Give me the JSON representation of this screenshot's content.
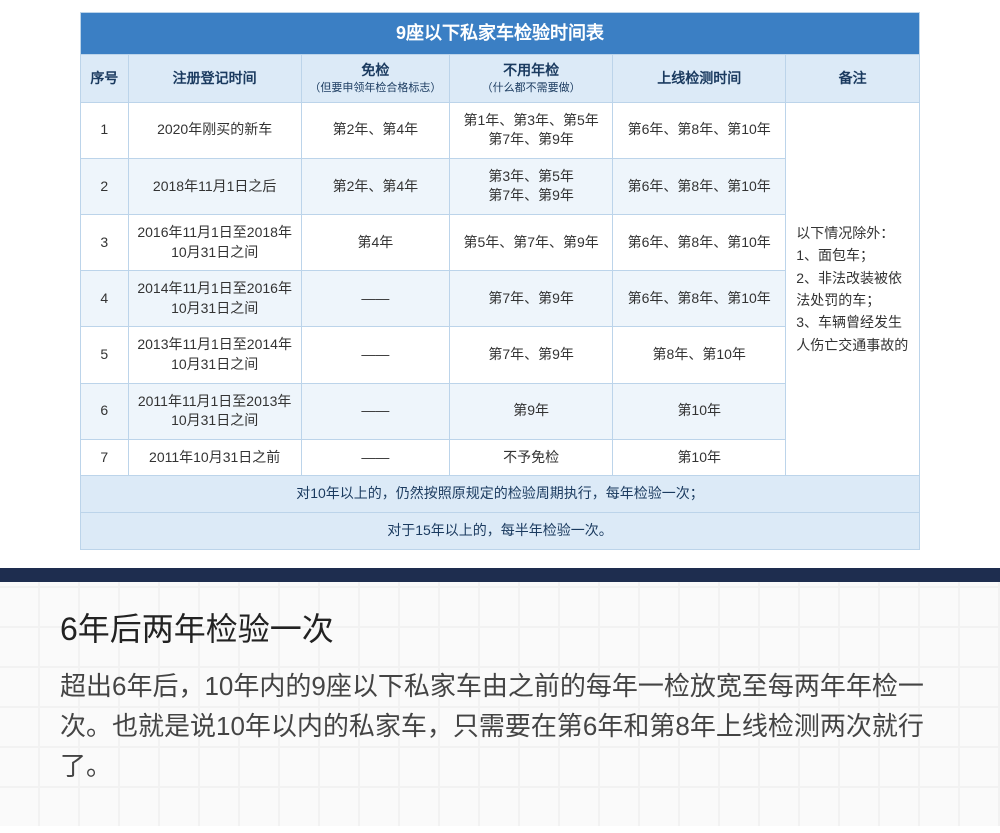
{
  "table": {
    "title": "9座以下私家车检验时间表",
    "headers": {
      "seq": "序号",
      "reg": "注册登记时间",
      "exempt": "免检",
      "exempt_sub": "（但要申领年检合格标志）",
      "nocheck": "不用年检",
      "nocheck_sub": "（什么都不需要做）",
      "online": "上线检测时间",
      "remark": "备注"
    },
    "rows": [
      {
        "seq": "1",
        "reg": "2020年刚买的新车",
        "exempt": "第2年、第4年",
        "nocheck": "第1年、第3年、第5年\n第7年、第9年",
        "online": "第6年、第8年、第10年"
      },
      {
        "seq": "2",
        "reg": "2018年11月1日之后",
        "exempt": "第2年、第4年",
        "nocheck": "第3年、第5年\n第7年、第9年",
        "online": "第6年、第8年、第10年"
      },
      {
        "seq": "3",
        "reg": "2016年11月1日至2018年10月31日之间",
        "exempt": "第4年",
        "nocheck": "第5年、第7年、第9年",
        "online": "第6年、第8年、第10年"
      },
      {
        "seq": "4",
        "reg": "2014年11月1日至2016年10月31日之间",
        "exempt": "——",
        "nocheck": "第7年、第9年",
        "online": "第6年、第8年、第10年"
      },
      {
        "seq": "5",
        "reg": "2013年11月1日至2014年10月31日之间",
        "exempt": "——",
        "nocheck": "第7年、第9年",
        "online": "第8年、第10年"
      },
      {
        "seq": "6",
        "reg": "2011年11月1日至2013年10月31日之间",
        "exempt": "——",
        "nocheck": "第9年",
        "online": "第10年"
      },
      {
        "seq": "7",
        "reg": "2011年10月31日之前",
        "exempt": "——",
        "nocheck": "不予免检",
        "online": "第10年"
      }
    ],
    "remark_text": "以下情况除外：\n1、面包车；\n2、非法改装被依法处罚的车；\n3、车辆曾经发生人伤亡交通事故的",
    "footer1": "对10年以上的，仍然按照原规定的检验周期执行，每年检验一次；",
    "footer2": "对于15年以上的，每半年检验一次。"
  },
  "article": {
    "heading": "6年后两年检验一次",
    "body": "超出6年后，10年内的9座以下私家车由之前的每年一检放宽至每两年年检一次。也就是说10年以内的私家车，只需要在第6年和第8年上线检测两次就行了。"
  }
}
